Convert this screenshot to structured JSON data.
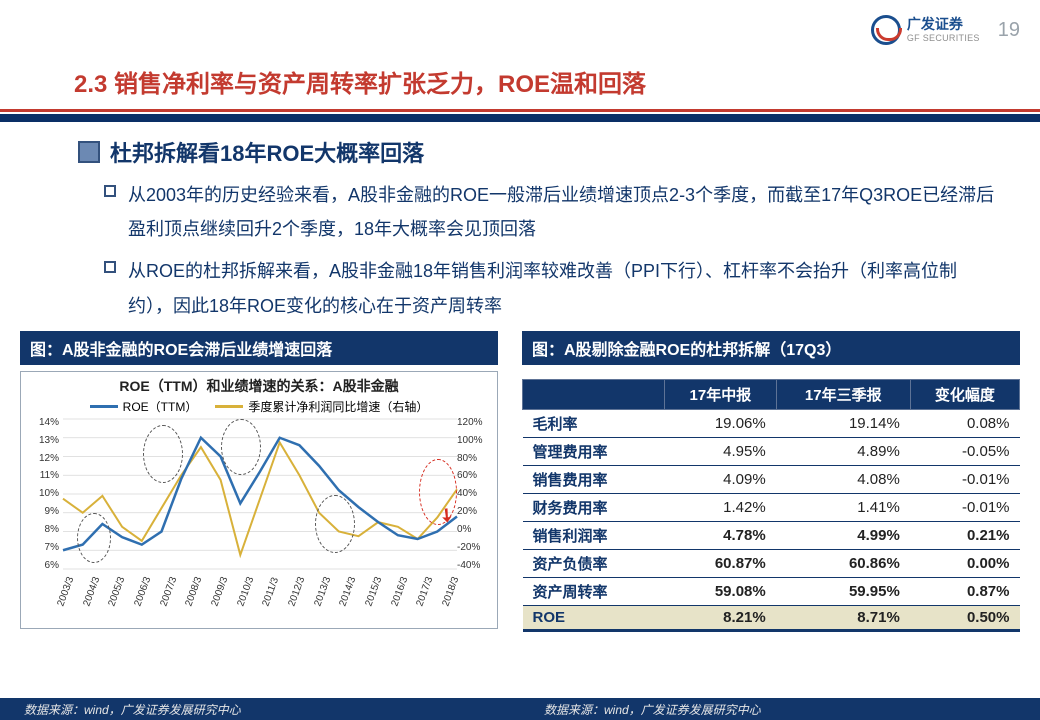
{
  "header": {
    "logo_cn": "广发证券",
    "logo_en": "GF SECURITIES",
    "page_number": "19"
  },
  "section_title": "2.3 销售净利率与资产周转率扩张乏力，ROE温和回落",
  "subhead": "杜邦拆解看18年ROE大概率回落",
  "bullets": [
    "从2003年的历史经验来看，A股非金融的ROE一般滞后业绩增速顶点2-3个季度，而截至17年Q3ROE已经滞后盈利顶点继续回升2个季度，18年大概率会见顶回落",
    "从ROE的杜邦拆解来看，A股非金融18年销售利润率较难改善（PPI下行）、杠杆率不会抬升（利率高位制约），因此18年ROE变化的核心在于资产周转率"
  ],
  "figure_left": {
    "title": "图：A股非金融的ROE会滞后业绩增速回落",
    "chart_title": "ROE（TTM）和业绩增速的关系：A股非金融",
    "series1_label": "ROE（TTM）",
    "series1_color": "#2f6fb0",
    "series2_label": "季度累计净利润同比增速（右轴）",
    "series2_color": "#d8b13a",
    "y_left_ticks": [
      "14%",
      "13%",
      "12%",
      "11%",
      "10%",
      "9%",
      "8%",
      "7%",
      "6%"
    ],
    "y_right_ticks": [
      "120%",
      "100%",
      "80%",
      "60%",
      "40%",
      "20%",
      "0%",
      "-20%",
      "-40%"
    ],
    "x_labels": [
      "2003/3",
      "2004/3",
      "2005/3",
      "2006/3",
      "2007/3",
      "2008/3",
      "2009/3",
      "2010/3",
      "2011/3",
      "2012/3",
      "2013/3",
      "2014/3",
      "2015/3",
      "2016/3",
      "2017/3",
      "2018/3"
    ],
    "roe": [
      7.0,
      7.3,
      8.4,
      7.7,
      7.3,
      8.0,
      10.8,
      13.0,
      12.0,
      9.5,
      11.2,
      13.0,
      12.6,
      11.5,
      10.2,
      9.3,
      8.5,
      7.8,
      7.6,
      8.0,
      8.8
    ],
    "growth": [
      35,
      20,
      38,
      5,
      -10,
      25,
      60,
      90,
      55,
      -25,
      35,
      95,
      60,
      20,
      0,
      -5,
      10,
      5,
      -8,
      15,
      45
    ],
    "source": "数据来源：wind，广发证券发展研究中心"
  },
  "figure_right": {
    "title": "图：A股剔除金融ROE的杜邦拆解（17Q3）",
    "columns": [
      "",
      "17年中报",
      "17年三季报",
      "变化幅度"
    ],
    "rows": [
      {
        "label": "毛利率",
        "a": "19.06%",
        "b": "19.14%",
        "c": "0.08%",
        "bold": false
      },
      {
        "label": "管理费用率",
        "a": "4.95%",
        "b": "4.89%",
        "c": "-0.05%",
        "bold": false
      },
      {
        "label": "销售费用率",
        "a": "4.09%",
        "b": "4.08%",
        "c": "-0.01%",
        "bold": false
      },
      {
        "label": "财务费用率",
        "a": "1.42%",
        "b": "1.41%",
        "c": "-0.01%",
        "bold": false
      },
      {
        "label": "销售利润率",
        "a": "4.78%",
        "b": "4.99%",
        "c": "0.21%",
        "bold": true
      },
      {
        "label": "资产负债率",
        "a": "60.87%",
        "b": "60.86%",
        "c": "0.00%",
        "bold": true
      },
      {
        "label": "资产周转率",
        "a": "59.08%",
        "b": "59.95%",
        "c": "0.87%",
        "bold": true
      },
      {
        "label": "ROE",
        "a": "8.21%",
        "b": "8.71%",
        "c": "0.50%",
        "bold": true,
        "highlight": true
      }
    ],
    "source": "数据来源：wind，广发证券发展研究中心"
  }
}
